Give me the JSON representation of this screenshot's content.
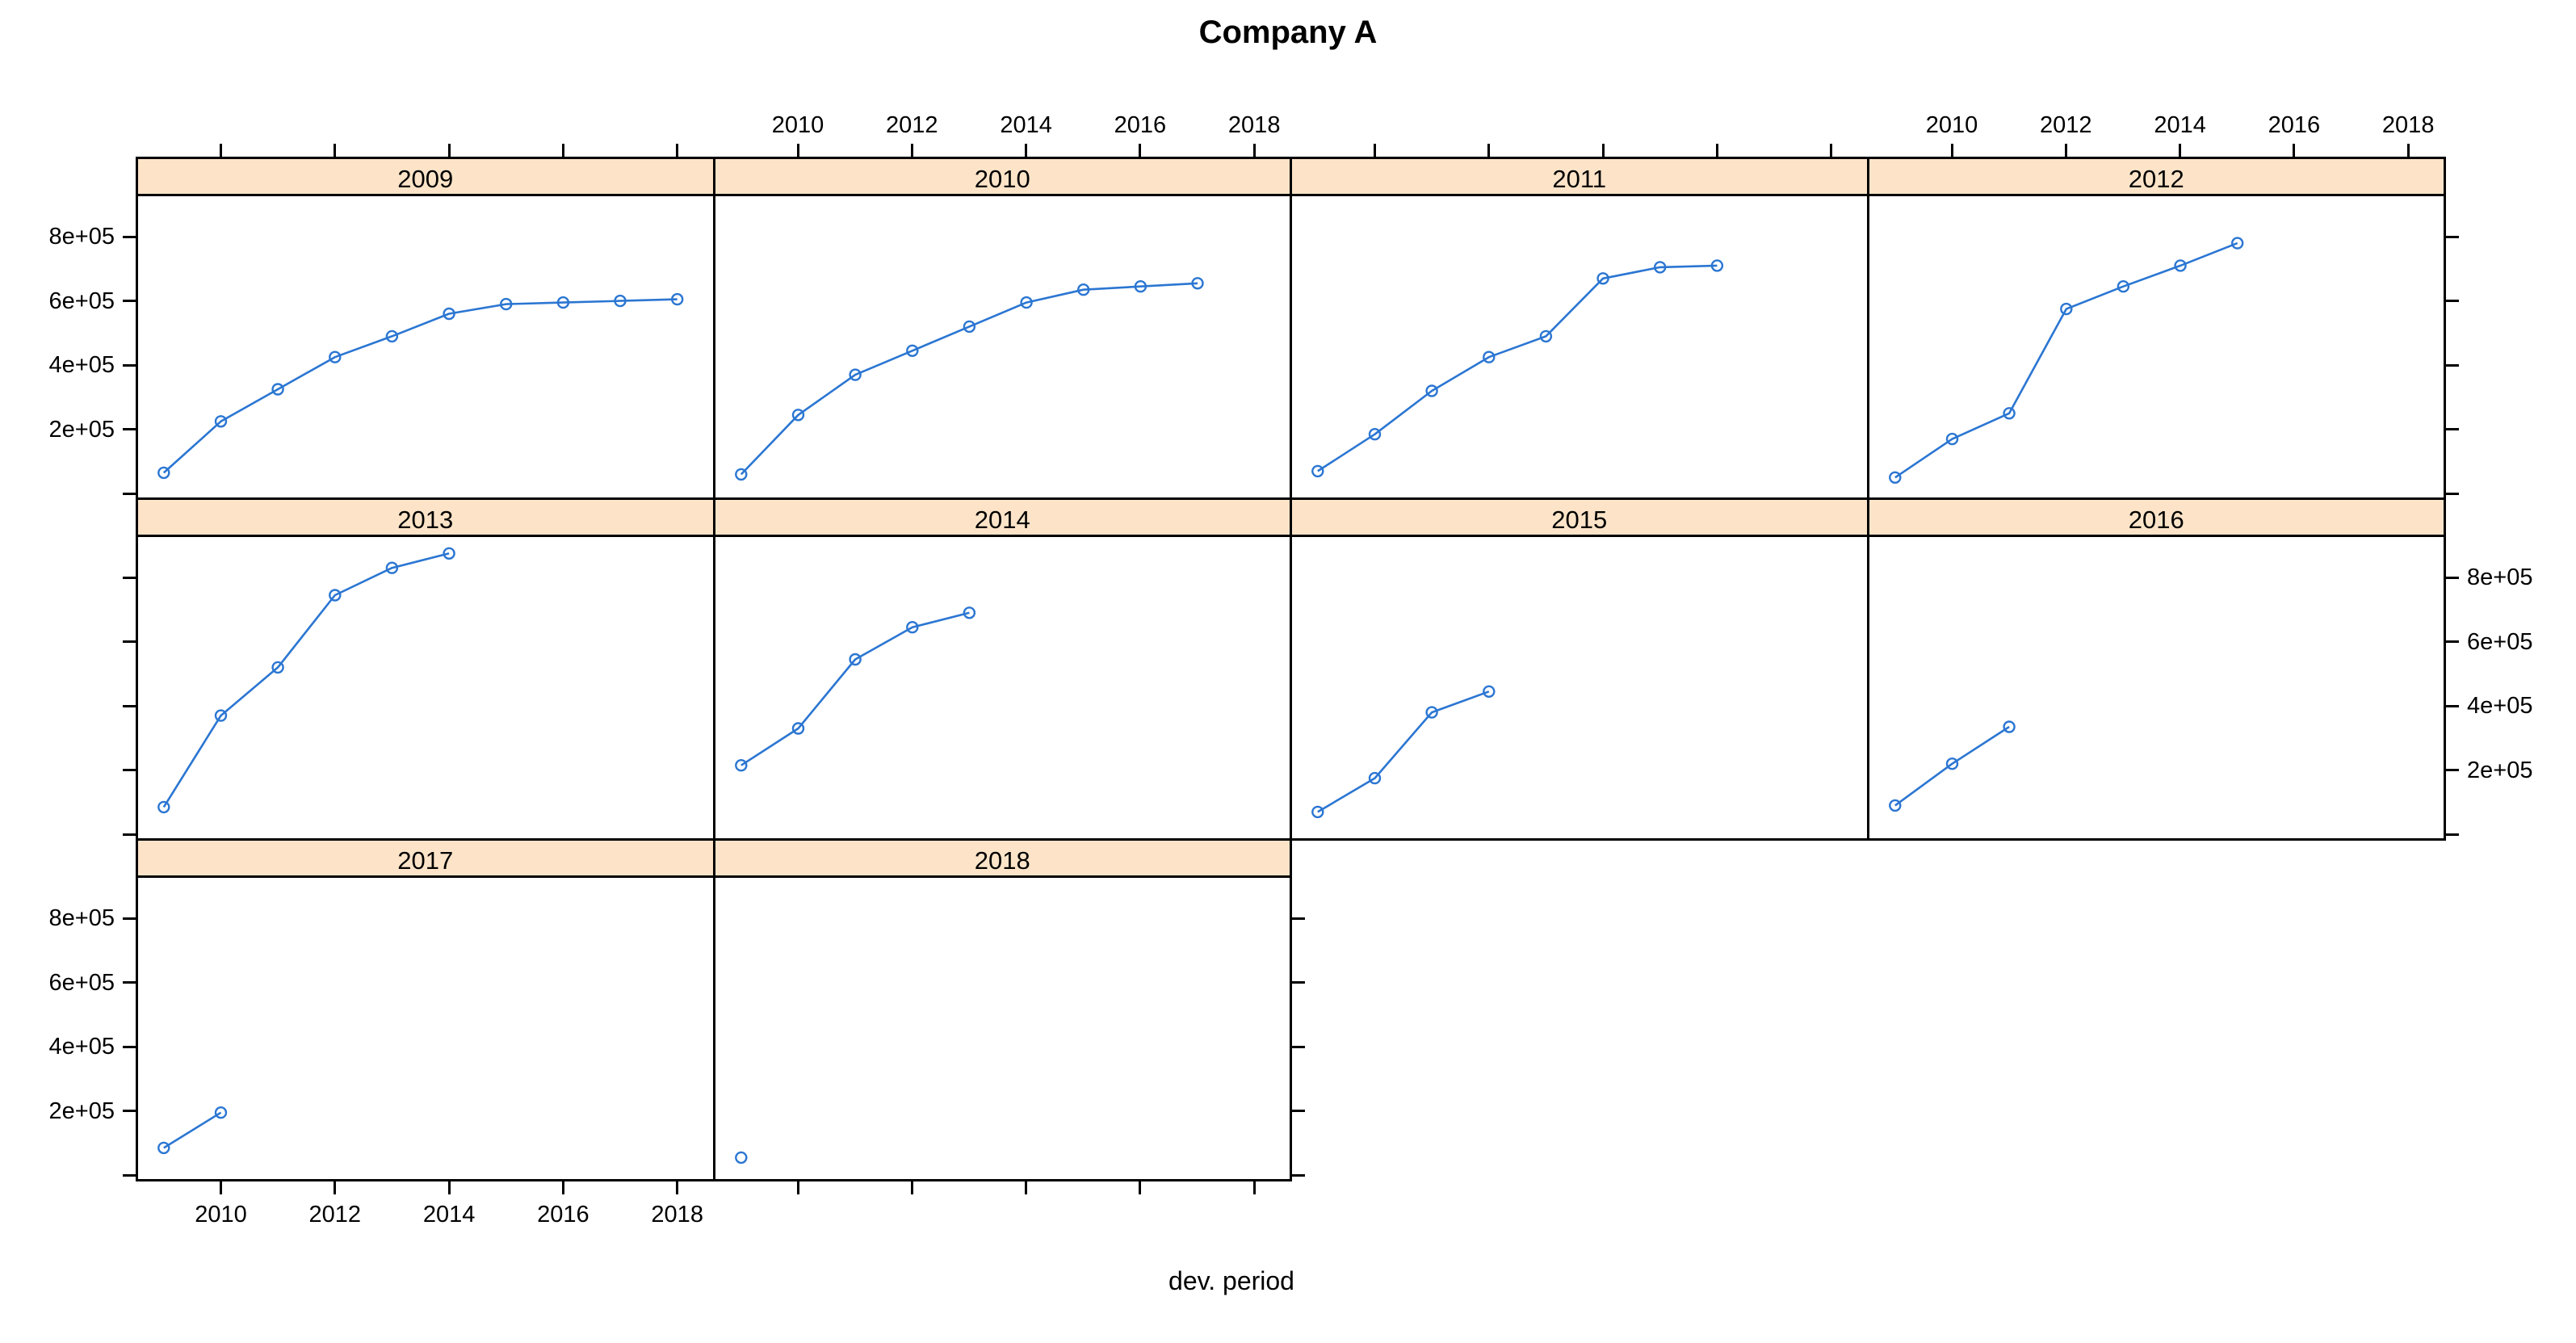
{
  "title": "Company A",
  "x_axis_label": "dev. period",
  "chart_data": {
    "type": "line",
    "trellis": true,
    "title": "Company A",
    "xlabel": "dev. period",
    "ylabel": "",
    "grid": false,
    "x_tick_labels": [
      "2010",
      "2012",
      "2014",
      "2016",
      "2018"
    ],
    "x_tick_years": [
      2010,
      2012,
      2014,
      2016,
      2018
    ],
    "y_ticks": [
      {
        "value": 0,
        "label": ""
      },
      {
        "value": 200000,
        "label": "2e+05"
      },
      {
        "value": 400000,
        "label": "4e+05"
      },
      {
        "value": 600000,
        "label": "6e+05"
      },
      {
        "value": 800000,
        "label": "8e+05"
      }
    ],
    "xlim": [
      2008.55,
      2018.62
    ],
    "ylim": [
      -12000,
      926000
    ],
    "start_year": 2009,
    "marker": "open-circle",
    "series_color": "#2b76d2",
    "strip_bg": "#fde4c8",
    "border_color": "#000000",
    "panels": [
      {
        "label": "2009",
        "row": 0,
        "col": 0,
        "values": [
          65000,
          225000,
          325000,
          425000,
          490000,
          560000,
          590000,
          595000,
          600000,
          605000
        ]
      },
      {
        "label": "2010",
        "row": 0,
        "col": 1,
        "values": [
          60000,
          245000,
          370000,
          445000,
          520000,
          595000,
          635000,
          645000,
          655000
        ]
      },
      {
        "label": "2011",
        "row": 0,
        "col": 2,
        "values": [
          70000,
          185000,
          320000,
          425000,
          490000,
          670000,
          705000,
          710000
        ]
      },
      {
        "label": "2012",
        "row": 0,
        "col": 3,
        "values": [
          50000,
          170000,
          250000,
          575000,
          645000,
          710000,
          780000
        ]
      },
      {
        "label": "2013",
        "row": 1,
        "col": 0,
        "values": [
          85000,
          370000,
          520000,
          745000,
          830000,
          875000
        ]
      },
      {
        "label": "2014",
        "row": 1,
        "col": 1,
        "values": [
          215000,
          330000,
          545000,
          645000,
          690000
        ]
      },
      {
        "label": "2015",
        "row": 1,
        "col": 2,
        "values": [
          70000,
          175000,
          380000,
          445000
        ]
      },
      {
        "label": "2016",
        "row": 1,
        "col": 3,
        "values": [
          90000,
          220000,
          335000
        ]
      },
      {
        "label": "2017",
        "row": 2,
        "col": 0,
        "values": [
          85000,
          195000
        ]
      },
      {
        "label": "2018",
        "row": 2,
        "col": 1,
        "values": [
          55000
        ]
      }
    ],
    "axes": {
      "top_tick_cols": [
        0,
        1,
        2,
        3
      ],
      "top_label_cols": [
        1,
        3
      ],
      "bottom_tick_cols": [
        0,
        1
      ],
      "bottom_label_cols": [
        0
      ],
      "left_tick_rows": [
        0,
        1,
        2
      ],
      "left_label_rows": [
        0,
        2
      ],
      "right_tick_rows": [
        0,
        1,
        2
      ],
      "right_label_rows": [
        1
      ]
    }
  }
}
